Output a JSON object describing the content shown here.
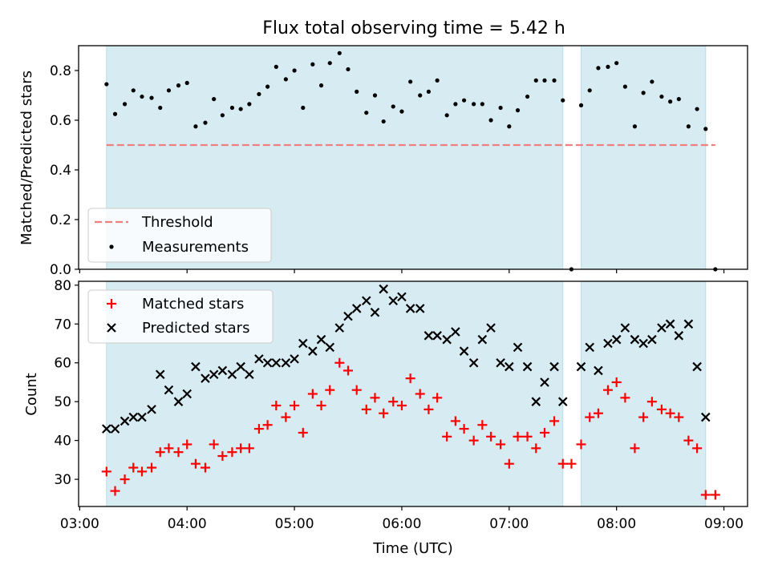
{
  "chart_data": {
    "title": "Flux total observing time = 5.42 h",
    "xlabel": "Time (UTC)",
    "x_unit": "hours UTC",
    "xlim": [
      2.99,
      9.22
    ],
    "x_ticks": [
      {
        "value": 3,
        "label": "03:00"
      },
      {
        "value": 4,
        "label": "04:00"
      },
      {
        "value": 5,
        "label": "05:00"
      },
      {
        "value": 6,
        "label": "06:00"
      },
      {
        "value": 7,
        "label": "07:00"
      },
      {
        "value": 8,
        "label": "08:00"
      },
      {
        "value": 9,
        "label": "09:00"
      }
    ],
    "observing_windows": [
      [
        3.25,
        7.5
      ],
      [
        7.67,
        8.83
      ]
    ],
    "panels": [
      {
        "type": "scatter",
        "ylabel": "Matched/Predicted stars",
        "ylim": [
          0,
          0.9
        ],
        "y_ticks": [
          0.0,
          0.2,
          0.4,
          0.6,
          0.8
        ],
        "y_tick_labels": [
          "0.0",
          "0.2",
          "0.4",
          "0.6",
          "0.8"
        ],
        "threshold": {
          "name": "Threshold",
          "value": 0.5,
          "x_range": [
            3.25,
            8.92
          ],
          "color": "#f08080"
        },
        "series": [
          {
            "name": "Measurements",
            "color": "#000000",
            "points": [
              [
                3.25,
                0.745
              ],
              [
                3.33,
                0.625
              ],
              [
                3.42,
                0.665
              ],
              [
                3.5,
                0.72
              ],
              [
                3.58,
                0.695
              ],
              [
                3.67,
                0.69
              ],
              [
                3.75,
                0.65
              ],
              [
                3.83,
                0.72
              ],
              [
                3.92,
                0.74
              ],
              [
                4.0,
                0.75
              ],
              [
                4.08,
                0.575
              ],
              [
                4.17,
                0.59
              ],
              [
                4.25,
                0.685
              ],
              [
                4.33,
                0.62
              ],
              [
                4.42,
                0.65
              ],
              [
                4.5,
                0.645
              ],
              [
                4.58,
                0.665
              ],
              [
                4.67,
                0.705
              ],
              [
                4.75,
                0.735
              ],
              [
                4.83,
                0.815
              ],
              [
                4.92,
                0.765
              ],
              [
                5.0,
                0.8
              ],
              [
                5.08,
                0.65
              ],
              [
                5.17,
                0.825
              ],
              [
                5.25,
                0.74
              ],
              [
                5.33,
                0.83
              ],
              [
                5.42,
                0.87
              ],
              [
                5.5,
                0.805
              ],
              [
                5.58,
                0.715
              ],
              [
                5.67,
                0.63
              ],
              [
                5.75,
                0.7
              ],
              [
                5.83,
                0.595
              ],
              [
                5.92,
                0.655
              ],
              [
                6.0,
                0.635
              ],
              [
                6.08,
                0.755
              ],
              [
                6.17,
                0.7
              ],
              [
                6.25,
                0.715
              ],
              [
                6.33,
                0.76
              ],
              [
                6.42,
                0.62
              ],
              [
                6.5,
                0.665
              ],
              [
                6.58,
                0.68
              ],
              [
                6.67,
                0.665
              ],
              [
                6.75,
                0.665
              ],
              [
                6.83,
                0.6
              ],
              [
                6.92,
                0.65
              ],
              [
                7.0,
                0.575
              ],
              [
                7.08,
                0.64
              ],
              [
                7.17,
                0.695
              ],
              [
                7.25,
                0.76
              ],
              [
                7.33,
                0.76
              ],
              [
                7.42,
                0.76
              ],
              [
                7.5,
                0.68
              ],
              [
                7.58,
                0.0
              ],
              [
                7.67,
                0.66
              ],
              [
                7.75,
                0.72
              ],
              [
                7.83,
                0.81
              ],
              [
                7.92,
                0.815
              ],
              [
                8.0,
                0.83
              ],
              [
                8.08,
                0.735
              ],
              [
                8.17,
                0.575
              ],
              [
                8.25,
                0.71
              ],
              [
                8.33,
                0.755
              ],
              [
                8.42,
                0.695
              ],
              [
                8.5,
                0.675
              ],
              [
                8.58,
                0.685
              ],
              [
                8.67,
                0.575
              ],
              [
                8.75,
                0.645
              ],
              [
                8.83,
                0.565
              ],
              [
                8.92,
                0.0
              ]
            ]
          }
        ],
        "legend": {
          "placement": "lower-left",
          "entries": [
            "Threshold",
            "Measurements"
          ]
        }
      },
      {
        "type": "scatter",
        "ylabel": "Count",
        "ylim": [
          23,
          81
        ],
        "y_ticks": [
          30,
          40,
          50,
          60,
          70,
          80
        ],
        "y_tick_labels": [
          "30",
          "40",
          "50",
          "60",
          "70",
          "80"
        ],
        "series": [
          {
            "name": "Matched stars",
            "marker": "plus",
            "color": "#ff0000",
            "points": [
              [
                3.25,
                32
              ],
              [
                3.33,
                27
              ],
              [
                3.42,
                30
              ],
              [
                3.5,
                33
              ],
              [
                3.58,
                32
              ],
              [
                3.67,
                33
              ],
              [
                3.75,
                37
              ],
              [
                3.83,
                38
              ],
              [
                3.92,
                37
              ],
              [
                4.0,
                39
              ],
              [
                4.08,
                34
              ],
              [
                4.17,
                33
              ],
              [
                4.25,
                39
              ],
              [
                4.33,
                36
              ],
              [
                4.42,
                37
              ],
              [
                4.5,
                38
              ],
              [
                4.58,
                38
              ],
              [
                4.67,
                43
              ],
              [
                4.75,
                44
              ],
              [
                4.83,
                49
              ],
              [
                4.92,
                46
              ],
              [
                5.0,
                49
              ],
              [
                5.08,
                42
              ],
              [
                5.17,
                52
              ],
              [
                5.25,
                49
              ],
              [
                5.33,
                53
              ],
              [
                5.42,
                60
              ],
              [
                5.5,
                58
              ],
              [
                5.58,
                53
              ],
              [
                5.67,
                48
              ],
              [
                5.75,
                51
              ],
              [
                5.83,
                47
              ],
              [
                5.92,
                50
              ],
              [
                6.0,
                49
              ],
              [
                6.08,
                56
              ],
              [
                6.17,
                52
              ],
              [
                6.25,
                48
              ],
              [
                6.33,
                51
              ],
              [
                6.42,
                41
              ],
              [
                6.5,
                45
              ],
              [
                6.58,
                43
              ],
              [
                6.67,
                40
              ],
              [
                6.75,
                44
              ],
              [
                6.83,
                41
              ],
              [
                6.92,
                39
              ],
              [
                7.0,
                34
              ],
              [
                7.08,
                41
              ],
              [
                7.17,
                41
              ],
              [
                7.25,
                38
              ],
              [
                7.33,
                42
              ],
              [
                7.42,
                45
              ],
              [
                7.5,
                34
              ],
              [
                7.58,
                34
              ],
              [
                7.67,
                39
              ],
              [
                7.75,
                46
              ],
              [
                7.83,
                47
              ],
              [
                7.92,
                53
              ],
              [
                8.0,
                55
              ],
              [
                8.08,
                51
              ],
              [
                8.17,
                38
              ],
              [
                8.25,
                46
              ],
              [
                8.33,
                50
              ],
              [
                8.42,
                48
              ],
              [
                8.5,
                47
              ],
              [
                8.58,
                46
              ],
              [
                8.67,
                40
              ],
              [
                8.75,
                38
              ],
              [
                8.83,
                26
              ],
              [
                8.92,
                26
              ]
            ]
          },
          {
            "name": "Predicted stars",
            "marker": "x",
            "color": "#000000",
            "points": [
              [
                3.25,
                43
              ],
              [
                3.33,
                43
              ],
              [
                3.42,
                45
              ],
              [
                3.5,
                46
              ],
              [
                3.58,
                46
              ],
              [
                3.67,
                48
              ],
              [
                3.75,
                57
              ],
              [
                3.83,
                53
              ],
              [
                3.92,
                50
              ],
              [
                4.0,
                52
              ],
              [
                4.08,
                59
              ],
              [
                4.17,
                56
              ],
              [
                4.25,
                57
              ],
              [
                4.33,
                58
              ],
              [
                4.42,
                57
              ],
              [
                4.5,
                59
              ],
              [
                4.58,
                57
              ],
              [
                4.67,
                61
              ],
              [
                4.75,
                60
              ],
              [
                4.83,
                60
              ],
              [
                4.92,
                60
              ],
              [
                5.0,
                61
              ],
              [
                5.08,
                65
              ],
              [
                5.17,
                63
              ],
              [
                5.25,
                66
              ],
              [
                5.33,
                64
              ],
              [
                5.42,
                69
              ],
              [
                5.5,
                72
              ],
              [
                5.58,
                74
              ],
              [
                5.67,
                76
              ],
              [
                5.75,
                73
              ],
              [
                5.83,
                79
              ],
              [
                5.92,
                76
              ],
              [
                6.0,
                77
              ],
              [
                6.08,
                74
              ],
              [
                6.17,
                74
              ],
              [
                6.25,
                67
              ],
              [
                6.33,
                67
              ],
              [
                6.42,
                66
              ],
              [
                6.5,
                68
              ],
              [
                6.58,
                63
              ],
              [
                6.67,
                60
              ],
              [
                6.75,
                66
              ],
              [
                6.83,
                69
              ],
              [
                6.92,
                60
              ],
              [
                7.0,
                59
              ],
              [
                7.08,
                64
              ],
              [
                7.17,
                59
              ],
              [
                7.25,
                50
              ],
              [
                7.33,
                55
              ],
              [
                7.42,
                59
              ],
              [
                7.5,
                50
              ],
              [
                7.67,
                59
              ],
              [
                7.75,
                64
              ],
              [
                7.83,
                58
              ],
              [
                7.92,
                65
              ],
              [
                8.0,
                66
              ],
              [
                8.08,
                69
              ],
              [
                8.17,
                66
              ],
              [
                8.25,
                65
              ],
              [
                8.33,
                66
              ],
              [
                8.42,
                69
              ],
              [
                8.5,
                70
              ],
              [
                8.58,
                67
              ],
              [
                8.67,
                70
              ],
              [
                8.75,
                59
              ],
              [
                8.83,
                46
              ]
            ]
          }
        ],
        "legend": {
          "placement": "top-left",
          "entries": [
            "Matched stars",
            "Predicted stars"
          ]
        }
      }
    ]
  }
}
